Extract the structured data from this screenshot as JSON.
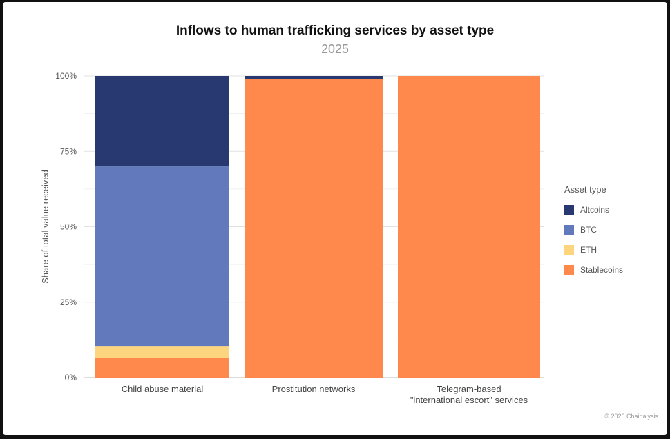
{
  "title": "Inflows to human trafficking services by asset type",
  "subtitle": "2025",
  "credit": "© 2026 Chainalysis",
  "legend_title": "Asset type",
  "chart_data": {
    "type": "bar",
    "stacked": true,
    "title": "Inflows to human trafficking services by asset type",
    "subtitle": "2025",
    "ylabel": "Share of total value received",
    "xlabel": "",
    "ylim": [
      0,
      100
    ],
    "yticks": [
      0,
      25,
      50,
      75,
      100
    ],
    "yticklabels": [
      "0%",
      "25%",
      "50%",
      "75%",
      "100%"
    ],
    "categories": [
      [
        "Child abuse material"
      ],
      [
        "Prostitution networks"
      ],
      [
        "Telegram-based",
        "\"international escort\" services"
      ]
    ],
    "series": [
      {
        "name": "Stablecoins",
        "color": "#FF884D",
        "values": [
          6.5,
          99,
          100
        ]
      },
      {
        "name": "ETH",
        "color": "#FCD57E",
        "values": [
          4,
          0,
          0
        ]
      },
      {
        "name": "BTC",
        "color": "#6279BC",
        "values": [
          59.5,
          0,
          0
        ]
      },
      {
        "name": "Altcoins",
        "color": "#283871",
        "values": [
          30,
          1,
          0
        ]
      }
    ],
    "legend_order": [
      "Altcoins",
      "BTC",
      "ETH",
      "Stablecoins"
    ],
    "legend_position": "right",
    "grid": true
  }
}
